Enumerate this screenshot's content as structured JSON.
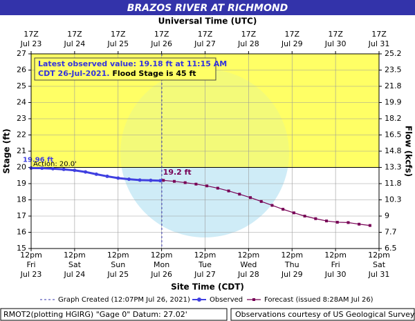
{
  "chart_data": {
    "type": "line",
    "title": "BRAZOS RIVER AT RICHMOND",
    "top_axis_title": "Universal Time (UTC)",
    "xlabel": "Site Time (CDT)",
    "ylabel": "Stage (ft)",
    "y2label": "Flow (kcfs)",
    "xlim": [
      23.5,
      31.5
    ],
    "xticks": [
      {
        "value": 23.5,
        "label": "12pm"
      },
      {
        "value": 24.5,
        "label": "12pm"
      },
      {
        "value": 25.5,
        "label": "12pm"
      },
      {
        "value": 26.5,
        "label": "12pm"
      },
      {
        "value": 27.5,
        "label": "12pm"
      },
      {
        "value": 28.5,
        "label": "12pm"
      },
      {
        "value": 29.5,
        "label": "12pm"
      },
      {
        "value": 30.5,
        "label": "12pm"
      },
      {
        "value": 31.5,
        "label": "12pm"
      }
    ],
    "xtick_weekdays": [
      "Fri",
      "Sat",
      "Sun",
      "Mon",
      "Tue",
      "Wed",
      "Thu",
      "Fri",
      "Sat"
    ],
    "xtick_dates": [
      "Jul 23",
      "Jul 24",
      "Jul 25",
      "Jul 26",
      "Jul 27",
      "Jul 28",
      "Jul 29",
      "Jul 30",
      "Jul 31"
    ],
    "top_xticks": [
      {
        "value": 23.5,
        "label": "17Z"
      },
      {
        "value": 24.5,
        "label": "17Z"
      },
      {
        "value": 25.5,
        "label": "17Z"
      },
      {
        "value": 26.5,
        "label": "17Z"
      },
      {
        "value": 27.5,
        "label": "17Z"
      },
      {
        "value": 28.5,
        "label": "17Z"
      },
      {
        "value": 29.5,
        "label": "17Z"
      },
      {
        "value": 30.5,
        "label": "17Z"
      },
      {
        "value": 31.5,
        "label": "17Z"
      }
    ],
    "ylim": [
      15,
      27
    ],
    "yticks": [
      15,
      16,
      17,
      18,
      19,
      20,
      21,
      22,
      23,
      24,
      25,
      26,
      27
    ],
    "y2lim": [
      6.5,
      25.2
    ],
    "y2ticks": [
      6.5,
      7.7,
      9.0,
      10.3,
      11.8,
      13.3,
      14.8,
      16.5,
      18.2,
      19.9,
      21.8,
      23.5,
      25.2
    ],
    "grid": true,
    "action_stage": {
      "value": 20,
      "label": "Action: 20.0'",
      "color": "#ffff66"
    },
    "graph_created": {
      "name": "Graph Created (12:07PM Jul 26, 2021)",
      "x": 26.5049,
      "color": "#3333aa"
    },
    "series": [
      {
        "name": "Observed",
        "color": "#4040e0",
        "x": [
          23.5,
          23.75,
          24.0,
          24.25,
          24.5,
          24.75,
          25.0,
          25.25,
          25.5,
          25.75,
          26.0,
          26.25,
          26.469
        ],
        "values": [
          19.96,
          19.95,
          19.92,
          19.88,
          19.82,
          19.72,
          19.58,
          19.45,
          19.34,
          19.27,
          19.22,
          19.2,
          19.18
        ],
        "label": "19.96 ft"
      },
      {
        "name": "Forecast (issued 8:28AM Jul 26)",
        "color": "#770055",
        "x": [
          26.5417,
          26.7917,
          27.0417,
          27.2917,
          27.5417,
          27.7917,
          28.0417,
          28.2917,
          28.5417,
          28.7917,
          29.0417,
          29.2917,
          29.5417,
          29.7917,
          30.0417,
          30.2917,
          30.5417,
          30.7917,
          31.0417,
          31.2917
        ],
        "values": [
          19.2,
          19.14,
          19.06,
          18.97,
          18.86,
          18.72,
          18.55,
          18.35,
          18.14,
          17.9,
          17.66,
          17.42,
          17.2,
          17.0,
          16.84,
          16.7,
          16.62,
          16.6,
          16.5,
          16.42
        ],
        "label": "19.2 ft"
      }
    ],
    "info_box": {
      "line1": "Latest observed value: 19.18 ft at 11:15 AM",
      "line2": "CDT 26-Jul-2021.",
      "line2_bold": "Flood Stage is 45 ft"
    },
    "footer_left": "RMOT2(plotting HGIRG) \"Gage 0\" Datum: 27.02'",
    "footer_right": "Observations courtesy of US Geological Survey"
  }
}
